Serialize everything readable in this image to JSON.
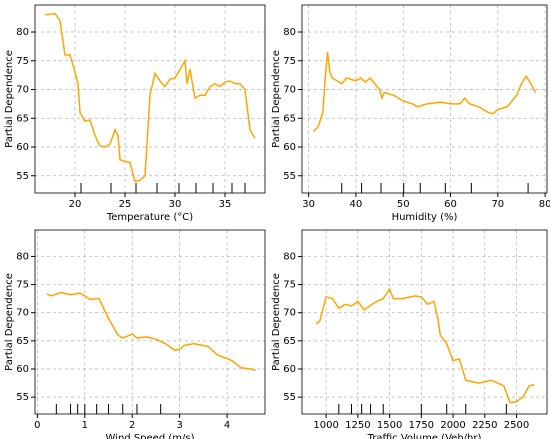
{
  "chart_data": [
    {
      "type": "line",
      "xlabel": "Temperature (°C)",
      "ylabel": "Partial Dependence",
      "color": "#ffa500",
      "rug_color": "#000000",
      "grid": true,
      "x": [
        17,
        18,
        18.5,
        19,
        19.5,
        20,
        20.3,
        20.5,
        21,
        21.5,
        22,
        22.5,
        23,
        23.5,
        24,
        24.3,
        24.5,
        25,
        25.5,
        26,
        26.5,
        27,
        27.5,
        28,
        28.5,
        29,
        29.5,
        30,
        30.5,
        31,
        31.2,
        31.5,
        32,
        32.5,
        33,
        33.5,
        34,
        34.5,
        35,
        35.5,
        36,
        36.5,
        37,
        37.5,
        38
      ],
      "values": [
        83,
        83.2,
        82,
        76,
        76,
        73,
        71,
        66,
        64.5,
        64.7,
        62,
        60.2,
        60,
        60.5,
        63,
        62,
        57.8,
        57.5,
        57.3,
        54,
        54.2,
        55,
        69,
        72.8,
        71.5,
        70.5,
        71.8,
        72,
        73.5,
        75,
        71,
        73.5,
        68.5,
        69,
        69,
        70.5,
        71,
        70.5,
        71.3,
        71.5,
        71,
        71,
        70,
        63,
        61.5
      ],
      "rug": [
        20.6,
        23.6,
        26.1,
        28.2,
        30.4,
        32.1,
        33.8,
        35.7,
        37.0
      ],
      "xlim": [
        16,
        39
      ],
      "xticks": [
        20,
        25,
        30,
        35
      ],
      "ylim": [
        52,
        84.7
      ],
      "yticks": [
        55,
        60,
        65,
        70,
        75,
        80
      ]
    },
    {
      "type": "line",
      "xlabel": "Humidity (%)",
      "ylabel": "Partial Dependence",
      "color": "#ffa500",
      "rug_color": "#000000",
      "grid": true,
      "x": [
        31,
        32,
        33,
        33.5,
        34,
        34.5,
        35,
        36,
        37,
        38,
        40,
        41,
        42,
        43,
        44,
        45,
        45.5,
        46,
        48,
        50,
        52,
        53,
        55,
        58,
        60,
        62,
        63,
        64,
        66,
        68,
        69,
        70,
        72,
        74,
        75,
        76,
        77,
        78
      ],
      "values": [
        62.7,
        63.5,
        66,
        72,
        76.5,
        73,
        72,
        71.5,
        71,
        72,
        71.5,
        72,
        71.3,
        72,
        71,
        70,
        68.5,
        69.5,
        69,
        68,
        67.5,
        67,
        67.5,
        67.8,
        67.5,
        67.5,
        68.5,
        67.5,
        67,
        66,
        65.8,
        66.5,
        67,
        69,
        71,
        72.3,
        71,
        69.5
      ],
      "rug": [
        37,
        41.2,
        45.3,
        50.1,
        53.6,
        58.9,
        64.4,
        76.4
      ],
      "xlim": [
        28.6,
        80.4
      ],
      "xticks": [
        30,
        40,
        50,
        60,
        70,
        80
      ],
      "ylim": [
        52,
        84.7
      ],
      "yticks": [
        55,
        60,
        65,
        70,
        75,
        80
      ]
    },
    {
      "type": "line",
      "xlabel": "Wind Speed (m/s)",
      "ylabel": "Partial Dependence",
      "color": "#ffa500",
      "rug_color": "#000000",
      "grid": true,
      "x": [
        0.2,
        0.3,
        0.5,
        0.7,
        0.9,
        1,
        1.1,
        1.3,
        1.5,
        1.7,
        1.8,
        2,
        2.1,
        2.3,
        2.5,
        2.7,
        2.9,
        3.0,
        3.1,
        3.3,
        3.6,
        3.8,
        4.1,
        4.3,
        4.5,
        4.6
      ],
      "values": [
        73.3,
        73,
        73.6,
        73.2,
        73.5,
        73,
        72.4,
        72.5,
        69,
        66,
        65.5,
        66.2,
        65.5,
        65.7,
        65.3,
        64.5,
        63.3,
        63.5,
        64.2,
        64.5,
        64,
        62.5,
        61.5,
        60.2,
        60,
        59.8
      ],
      "rug": [
        0.4,
        0.7,
        0.85,
        1.0,
        1.25,
        1.5,
        1.8,
        2.1,
        2.6
      ],
      "xlim": [
        -0.05,
        4.8
      ],
      "xticks": [
        0,
        1,
        2,
        3,
        4
      ],
      "ylim": [
        52,
        84.7
      ],
      "yticks": [
        55,
        60,
        65,
        70,
        75,
        80
      ]
    },
    {
      "type": "line",
      "xlabel": "Traffic Volume (Veh/hr)",
      "ylabel": "Partial Dependence",
      "color": "#ffa500",
      "rug_color": "#000000",
      "grid": true,
      "x": [
        920,
        950,
        1000,
        1050,
        1100,
        1150,
        1200,
        1250,
        1300,
        1350,
        1400,
        1450,
        1500,
        1530,
        1600,
        1700,
        1750,
        1800,
        1850,
        1880,
        1900,
        1950,
        2000,
        2050,
        2100,
        2200,
        2300,
        2400,
        2450,
        2500,
        2550,
        2600,
        2640
      ],
      "values": [
        68,
        68.5,
        72.8,
        72.5,
        70.8,
        71.5,
        71.2,
        72,
        70.5,
        71.3,
        72,
        72.5,
        74.2,
        72.5,
        72.5,
        73,
        72.8,
        71.5,
        72,
        69,
        66,
        64.5,
        61.5,
        61.8,
        58,
        57.5,
        58,
        57,
        54,
        54.2,
        55,
        57,
        57.2
      ],
      "rug": [
        1100,
        1200,
        1280,
        1350,
        1450,
        1750,
        1950,
        2100,
        2420
      ],
      "xlim": [
        810,
        2740
      ],
      "xticks": [
        1000,
        1250,
        1500,
        1750,
        2000,
        2250,
        2500
      ],
      "ylim": [
        52,
        84.7
      ],
      "yticks": [
        55,
        60,
        65,
        70,
        75,
        80
      ]
    }
  ]
}
